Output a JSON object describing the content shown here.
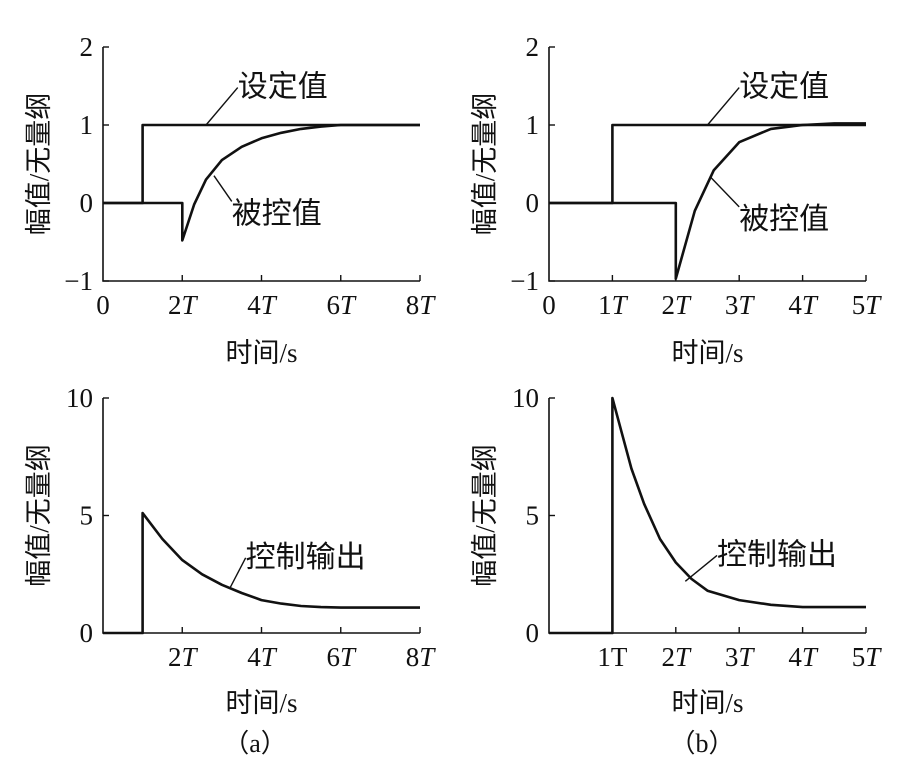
{
  "figure": {
    "labels": {
      "a": "（a）",
      "b": "（b）"
    }
  },
  "chart_data": [
    {
      "id": "a-top",
      "type": "line",
      "ylabel": "幅值/无量纲",
      "xlabel": "时间/s",
      "xlim": [
        0,
        8
      ],
      "ylim": [
        -1,
        2
      ],
      "xticks": [
        {
          "value": 0,
          "coef": "0",
          "T": ""
        },
        {
          "value": 2,
          "coef": "2",
          "T": "T"
        },
        {
          "value": 4,
          "coef": "4",
          "T": "T"
        },
        {
          "value": 6,
          "coef": "6",
          "T": "T"
        },
        {
          "value": 8,
          "coef": "8",
          "T": "T"
        }
      ],
      "yticks": [
        {
          "value": 2,
          "label": "2"
        },
        {
          "value": 1,
          "label": "1"
        },
        {
          "value": 0,
          "label": "0"
        },
        {
          "value": -1,
          "label": "−1"
        }
      ],
      "grid": false,
      "series": [
        {
          "name": "设定值",
          "x": [
            0,
            1,
            1,
            8
          ],
          "y": [
            0,
            0,
            1,
            1
          ]
        },
        {
          "name": "被控值",
          "x": [
            0,
            2,
            2,
            2.3,
            2.6,
            3,
            3.5,
            4,
            4.5,
            5,
            5.5,
            6,
            8
          ],
          "y": [
            0,
            0,
            -0.48,
            -0.02,
            0.3,
            0.55,
            0.72,
            0.83,
            0.9,
            0.95,
            0.98,
            1.0,
            1.0
          ]
        }
      ],
      "annotations": [
        {
          "series": 0,
          "text": "设定值",
          "at_x": 2.6,
          "at_y": 1,
          "to_x": 3.4,
          "to_y": 1.48
        },
        {
          "series": 1,
          "text": "被控值",
          "at_x": 2.8,
          "at_y": 0.35,
          "to_x": 3.25,
          "to_y": 0.02
        }
      ]
    },
    {
      "id": "b-top",
      "type": "line",
      "ylabel": "幅值/无量纲",
      "xlabel": "时间/s",
      "xlim": [
        0,
        5
      ],
      "ylim": [
        -1,
        2
      ],
      "xticks": [
        {
          "value": 0,
          "coef": "0",
          "T": ""
        },
        {
          "value": 1,
          "coef": "1",
          "T": "T"
        },
        {
          "value": 2,
          "coef": "2",
          "T": "T"
        },
        {
          "value": 3,
          "coef": "3",
          "T": "T"
        },
        {
          "value": 4,
          "coef": "4",
          "T": "T"
        },
        {
          "value": 5,
          "coef": "5",
          "T": "T"
        }
      ],
      "yticks": [
        {
          "value": 2,
          "label": "2"
        },
        {
          "value": 1,
          "label": "1"
        },
        {
          "value": 0,
          "label": "0"
        },
        {
          "value": -1,
          "label": "−1"
        }
      ],
      "grid": false,
      "series": [
        {
          "name": "设定值",
          "x": [
            0,
            1,
            1,
            5
          ],
          "y": [
            0,
            0,
            1,
            1
          ]
        },
        {
          "name": "被控值",
          "x": [
            0,
            2,
            2,
            2.3,
            2.6,
            3,
            3.5,
            4,
            4.5,
            5
          ],
          "y": [
            0,
            0,
            -0.97,
            -0.1,
            0.42,
            0.78,
            0.95,
            1.0,
            1.02,
            1.02
          ]
        }
      ],
      "annotations": [
        {
          "series": 0,
          "text": "设定值",
          "at_x": 2.5,
          "at_y": 1,
          "to_x": 3,
          "to_y": 1.48
        },
        {
          "series": 1,
          "text": "被控值",
          "at_x": 2.55,
          "at_y": 0.33,
          "to_x": 3,
          "to_y": -0.05
        }
      ]
    },
    {
      "id": "a-bottom",
      "type": "line",
      "ylabel": "幅值/无量纲",
      "xlabel": "时间/s",
      "xlim": [
        0,
        8
      ],
      "ylim": [
        0,
        10
      ],
      "xticks": [
        {
          "value": 2,
          "coef": "2",
          "T": "T"
        },
        {
          "value": 4,
          "coef": "4",
          "T": "T"
        },
        {
          "value": 6,
          "coef": "6",
          "T": "T"
        },
        {
          "value": 8,
          "coef": "8",
          "T": "T"
        }
      ],
      "yticks": [
        {
          "value": 10,
          "label": "10"
        },
        {
          "value": 5,
          "label": "5"
        },
        {
          "value": 0,
          "label": "0"
        }
      ],
      "grid": false,
      "series": [
        {
          "name": "控制输出",
          "x": [
            0,
            1,
            1,
            1.5,
            2,
            2.5,
            3,
            3.5,
            4,
            4.5,
            5,
            5.5,
            6,
            8
          ],
          "y": [
            0,
            0,
            5.1,
            4.0,
            3.1,
            2.5,
            2.05,
            1.7,
            1.4,
            1.25,
            1.15,
            1.1,
            1.08,
            1.08
          ]
        }
      ],
      "annotations": [
        {
          "series": 0,
          "text": "控制输出",
          "at_x": 3.2,
          "at_y": 1.9,
          "to_x": 3.6,
          "to_y": 3.2
        }
      ]
    },
    {
      "id": "b-bottom",
      "type": "line",
      "ylabel": "幅值/无量纲",
      "xlabel": "时间/s",
      "xlim": [
        0,
        5
      ],
      "ylim": [
        0,
        10
      ],
      "xticks": [
        {
          "value": 1,
          "coef": "1T",
          "T": ""
        },
        {
          "value": 2,
          "coef": "2",
          "T": "T"
        },
        {
          "value": 3,
          "coef": "3",
          "T": "T"
        },
        {
          "value": 4,
          "coef": "4",
          "T": "T"
        },
        {
          "value": 5,
          "coef": "5",
          "T": "T"
        }
      ],
      "yticks": [
        {
          "value": 10,
          "label": "10"
        },
        {
          "value": 5,
          "label": "5"
        },
        {
          "value": 0,
          "label": "0"
        }
      ],
      "grid": false,
      "series": [
        {
          "name": "控制输出",
          "x": [
            0,
            1,
            1,
            1.15,
            1.3,
            1.5,
            1.75,
            2,
            2.25,
            2.5,
            3,
            3.5,
            4,
            5
          ],
          "y": [
            0,
            0,
            10,
            8.5,
            7.0,
            5.5,
            4.0,
            3.0,
            2.3,
            1.8,
            1.4,
            1.2,
            1.1,
            1.1
          ]
        }
      ],
      "annotations": [
        {
          "series": 0,
          "text": "控制输出",
          "at_x": 2.15,
          "at_y": 2.2,
          "to_x": 2.65,
          "to_y": 3.3
        }
      ]
    }
  ]
}
